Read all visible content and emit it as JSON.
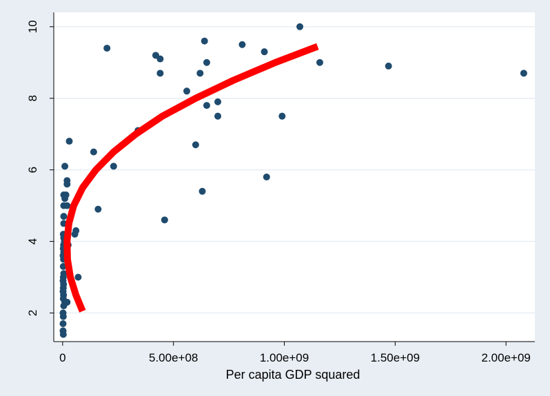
{
  "chart_data": {
    "type": "scatter",
    "title": "",
    "xlabel": "Per capita GDP squared",
    "ylabel": "",
    "xlim": [
      -40000000,
      2130000000
    ],
    "ylim": [
      1.2,
      10.4
    ],
    "xticks": [
      {
        "value": 0,
        "label": "0"
      },
      {
        "value": 500000000,
        "label": "5.00e+08"
      },
      {
        "value": 1000000000,
        "label": "1.00e+09"
      },
      {
        "value": 1500000000,
        "label": "1.50e+09"
      },
      {
        "value": 2000000000,
        "label": "2.00e+09"
      }
    ],
    "yticks": [
      {
        "value": 2,
        "label": "2"
      },
      {
        "value": 4,
        "label": "4"
      },
      {
        "value": 6,
        "label": "6"
      },
      {
        "value": 8,
        "label": "8"
      },
      {
        "value": 10,
        "label": "10"
      }
    ],
    "grid": true,
    "legend": "none",
    "colors": {
      "background": "#e8eef4",
      "plot_area": "#ffffff",
      "points": "#1f4b6e",
      "fit_line": "#ff0000",
      "grid": "#e8eef4"
    },
    "series": [
      {
        "type": "scatter",
        "points": [
          [
            1070000000,
            10.0
          ],
          [
            640000000,
            9.6
          ],
          [
            810000000,
            9.5
          ],
          [
            200000000,
            9.4
          ],
          [
            910000000,
            9.3
          ],
          [
            420000000,
            9.2
          ],
          [
            440000000,
            9.1
          ],
          [
            650000000,
            9.0
          ],
          [
            1160000000,
            9.0
          ],
          [
            1470000000,
            8.9
          ],
          [
            440000000,
            8.7
          ],
          [
            620000000,
            8.7
          ],
          [
            2080000000,
            8.7
          ],
          [
            560000000,
            8.2
          ],
          [
            700000000,
            7.9
          ],
          [
            650000000,
            7.8
          ],
          [
            700000000,
            7.5
          ],
          [
            990000000,
            7.5
          ],
          [
            340000000,
            7.1
          ],
          [
            30000000,
            6.8
          ],
          [
            600000000,
            6.7
          ],
          [
            140000000,
            6.5
          ],
          [
            230000000,
            6.1
          ],
          [
            10000000,
            6.1
          ],
          [
            920000000,
            5.8
          ],
          [
            20000000,
            5.7
          ],
          [
            20000000,
            5.6
          ],
          [
            630000000,
            5.4
          ],
          [
            5000000,
            5.3
          ],
          [
            15000000,
            5.3
          ],
          [
            10000000,
            5.2
          ],
          [
            5000000,
            5.0
          ],
          [
            20000000,
            5.0
          ],
          [
            160000000,
            4.9
          ],
          [
            5000000,
            4.7
          ],
          [
            460000000,
            4.6
          ],
          [
            5000000,
            4.5
          ],
          [
            60000000,
            4.3
          ],
          [
            55000000,
            4.2
          ],
          [
            3000000,
            4.2
          ],
          [
            5000000,
            4.1
          ],
          [
            8000000,
            4.0
          ],
          [
            4000000,
            3.9
          ],
          [
            25000000,
            3.9
          ],
          [
            3000000,
            3.8
          ],
          [
            5000000,
            3.7
          ],
          [
            2000000,
            3.6
          ],
          [
            4000000,
            3.5
          ],
          [
            3000000,
            3.3
          ],
          [
            5000000,
            3.1
          ],
          [
            3000000,
            3.0
          ],
          [
            70000000,
            3.0
          ],
          [
            2000000,
            2.9
          ],
          [
            4000000,
            2.8
          ],
          [
            3000000,
            2.7
          ],
          [
            2000000,
            2.6
          ],
          [
            4000000,
            2.5
          ],
          [
            3000000,
            2.4
          ],
          [
            10000000,
            2.3
          ],
          [
            20000000,
            2.3
          ],
          [
            5000000,
            2.2
          ],
          [
            2000000,
            2.0
          ],
          [
            3000000,
            1.9
          ],
          [
            2000000,
            1.7
          ],
          [
            2000000,
            1.5
          ],
          [
            3000000,
            1.4
          ]
        ]
      },
      {
        "type": "line",
        "points": [
          [
            90000000,
            2.05
          ],
          [
            60000000,
            2.5
          ],
          [
            35000000,
            3.0
          ],
          [
            22000000,
            3.5
          ],
          [
            20000000,
            4.0
          ],
          [
            28000000,
            4.5
          ],
          [
            50000000,
            5.0
          ],
          [
            90000000,
            5.5
          ],
          [
            150000000,
            6.0
          ],
          [
            230000000,
            6.5
          ],
          [
            330000000,
            7.0
          ],
          [
            450000000,
            7.5
          ],
          [
            600000000,
            8.0
          ],
          [
            770000000,
            8.5
          ],
          [
            960000000,
            9.0
          ],
          [
            1150000000,
            9.45
          ]
        ]
      }
    ]
  }
}
